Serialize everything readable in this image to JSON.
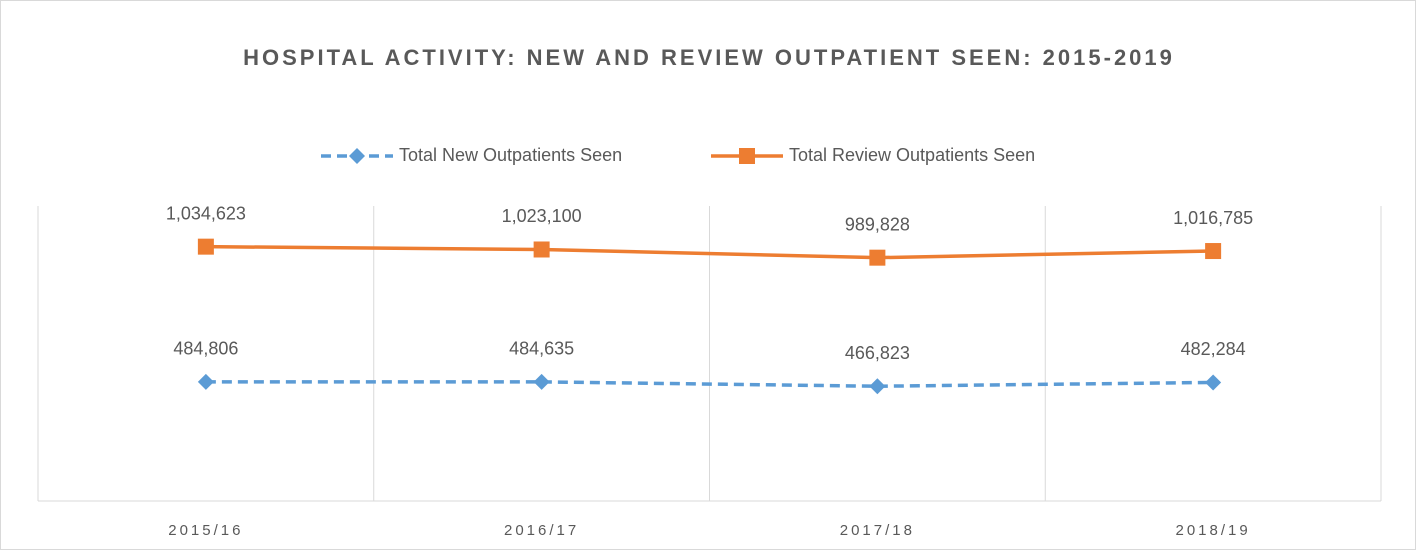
{
  "chart_data": {
    "type": "line",
    "title": "HOSPITAL ACTIVITY: NEW AND REVIEW OUTPATIENT SEEN: 2015-2019",
    "categories": [
      "2015/16",
      "2016/17",
      "2017/18",
      "2018/19"
    ],
    "series": [
      {
        "name": "Total New Outpatients Seen",
        "color": "#5b9bd5",
        "dashed": true,
        "marker": "diamond",
        "values": [
          484806,
          484635,
          466823,
          482284
        ],
        "value_labels": [
          "484,806",
          "484,635",
          "466,823",
          "482,284"
        ]
      },
      {
        "name": "Total Review Outpatients Seen",
        "color": "#ed7d31",
        "dashed": false,
        "marker": "square",
        "values": [
          1034623,
          1023100,
          989828,
          1016785
        ],
        "value_labels": [
          "1,034,623",
          "1,023,100",
          "989,828",
          "1,016,785"
        ]
      }
    ],
    "ylim": [
      0,
      1200000
    ],
    "legend": "top"
  }
}
